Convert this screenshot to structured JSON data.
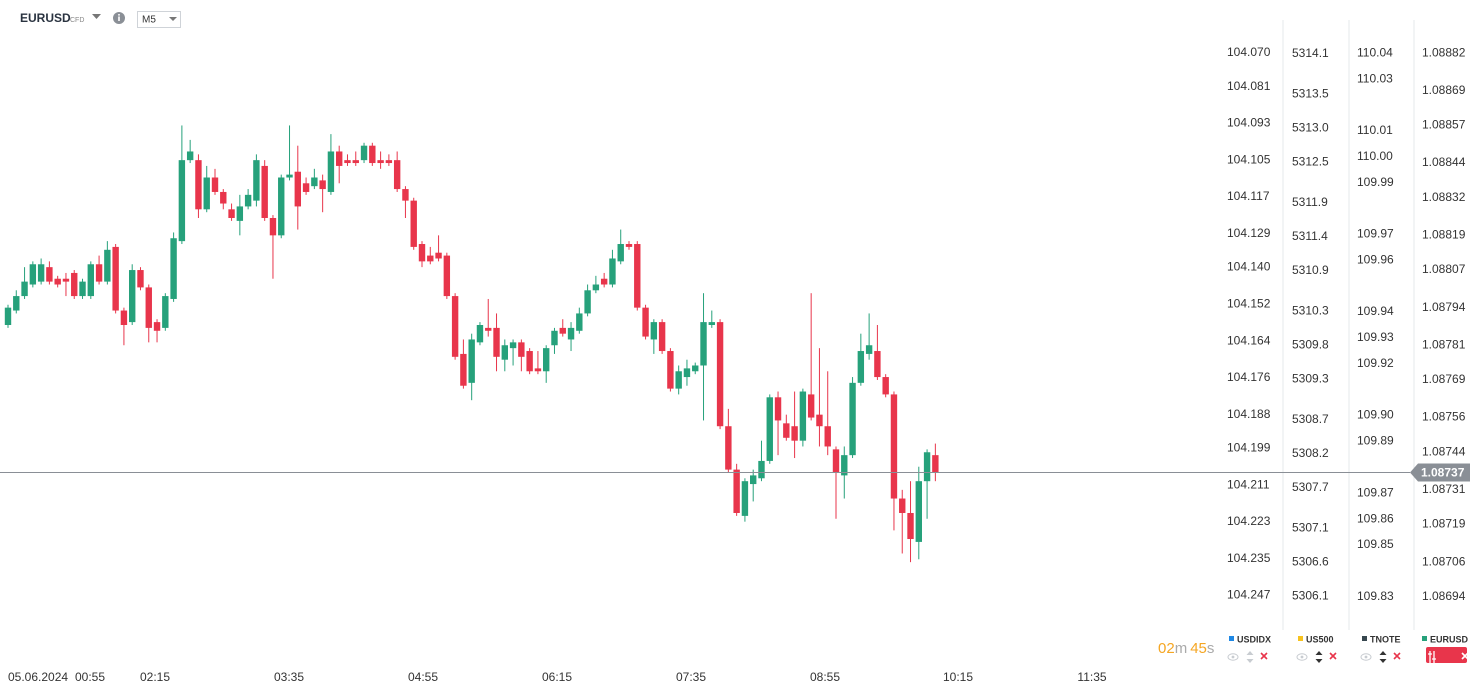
{
  "header": {
    "symbol": "EURUSD",
    "badge": "CFD",
    "timeframe": "M5"
  },
  "chart_data": {
    "type": "candlestick",
    "color_up": "#26a17b",
    "color_down": "#e8354b",
    "current_price": 1.08737,
    "x_labels": [
      "05.06.2024",
      "00:55",
      "02:15",
      "03:35",
      "04:55",
      "06:15",
      "07:35",
      "08:55",
      "10:15",
      "11:35"
    ],
    "axes": [
      {
        "name": "USDIDX",
        "color": "#1e88e5",
        "ylim": [
          104.255,
          104.0625
        ],
        "yticks": [
          {
            "value": 104.07,
            "label": "104.070"
          },
          104.081,
          104.093,
          104.105,
          104.117,
          104.129,
          {
            "value": 104.14,
            "label": "104.140"
          },
          104.152,
          104.164,
          104.176,
          104.188,
          104.199,
          104.211,
          104.223,
          104.235,
          104.247
        ]
      },
      {
        "name": "US500",
        "color": "#f7c21e",
        "ylim": [
          5305.75,
          5314.45
        ],
        "yticks": [
          5314.1,
          5313.5,
          {
            "value": 5313,
            "label": "5313.0"
          },
          5312.5,
          5311.9,
          5311.4,
          5310.9,
          5310.3,
          5309.8,
          5309.3,
          5308.7,
          5308.2,
          5307.7,
          5307.1,
          5306.6,
          5306.1
        ]
      },
      {
        "name": "TNOTE",
        "color": "#37474f",
        "ylim": [
          109.821,
          110.049
        ],
        "yticks": [
          110.04,
          110.03,
          110.01,
          {
            "value": 110,
            "label": "110.00"
          },
          109.99,
          109.97,
          109.96,
          109.94,
          109.93,
          109.92,
          {
            "value": 109.9,
            "label": "109.90"
          },
          109.89,
          109.87,
          109.86,
          109.85,
          109.83
        ]
      },
      {
        "name": "EURUSD",
        "color": "#26a17b",
        "ylim": [
          1.08686,
          1.0889
        ],
        "yticks": [
          1.08882,
          1.08869,
          1.08857,
          1.08844,
          1.08832,
          1.08819,
          1.08807,
          1.08794,
          1.08781,
          1.08769,
          1.08756,
          1.08744,
          1.08731,
          1.08719,
          1.08706,
          1.08694
        ]
      }
    ],
    "candles": [
      [
        1.08788,
        1.08795,
        1.08787,
        1.08794
      ],
      [
        1.08793,
        1.088,
        1.08792,
        1.08798
      ],
      [
        1.08798,
        1.08808,
        1.08797,
        1.08803
      ],
      [
        1.08802,
        1.0881,
        1.08801,
        1.08809
      ],
      [
        1.08803,
        1.08811,
        1.08802,
        1.08809
      ],
      [
        1.08808,
        1.0881,
        1.08802,
        1.08803
      ],
      [
        1.08804,
        1.08805,
        1.08801,
        1.08802
      ],
      [
        1.08804,
        1.08806,
        1.08798,
        1.08803
      ],
      [
        1.08806,
        1.08807,
        1.08797,
        1.08798
      ],
      [
        1.08798,
        1.08804,
        1.08797,
        1.08803
      ],
      [
        1.08798,
        1.0881,
        1.08797,
        1.08809
      ],
      [
        1.08809,
        1.08812,
        1.08802,
        1.08803
      ],
      [
        1.08803,
        1.08817,
        1.08802,
        1.08814
      ],
      [
        1.08815,
        1.08816,
        1.08792,
        1.08793
      ],
      [
        1.08793,
        1.08794,
        1.08781,
        1.08788
      ],
      [
        1.08789,
        1.08809,
        1.08788,
        1.08807
      ],
      [
        1.08807,
        1.08808,
        1.088,
        1.08801
      ],
      [
        1.08801,
        1.08802,
        1.08782,
        1.08787
      ],
      [
        1.08789,
        1.0879,
        1.08782,
        1.08786
      ],
      [
        1.08787,
        1.08799,
        1.08786,
        1.08798
      ],
      [
        1.08797,
        1.0882,
        1.08796,
        1.08818
      ],
      [
        1.08817,
        1.08857,
        1.08816,
        1.08845
      ],
      [
        1.08845,
        1.08852,
        1.08844,
        1.08848
      ],
      [
        1.08845,
        1.08847,
        1.08825,
        1.08828
      ],
      [
        1.08828,
        1.08843,
        1.08827,
        1.08839
      ],
      [
        1.08839,
        1.08842,
        1.08833,
        1.08834
      ],
      [
        1.08834,
        1.08835,
        1.08828,
        1.0883
      ],
      [
        1.08828,
        1.0883,
        1.08824,
        1.08825
      ],
      [
        1.08824,
        1.08833,
        1.08819,
        1.08829
      ],
      [
        1.08829,
        1.08835,
        1.08828,
        1.08833
      ],
      [
        1.08831,
        1.08847,
        1.08829,
        1.08845
      ],
      [
        1.08843,
        1.08845,
        1.08824,
        1.08825
      ],
      [
        1.08825,
        1.08826,
        1.08804,
        1.08819
      ],
      [
        1.08819,
        1.0884,
        1.08818,
        1.08839
      ],
      [
        1.08839,
        1.08857,
        1.08838,
        1.0884
      ],
      [
        1.08841,
        1.0885,
        1.08821,
        1.08829
      ],
      [
        1.08837,
        1.08839,
        1.08833,
        1.08834
      ],
      [
        1.08836,
        1.08842,
        1.08835,
        1.08839
      ],
      [
        1.08838,
        1.0884,
        1.08827,
        1.08835
      ],
      [
        1.08834,
        1.08854,
        1.08833,
        1.08848
      ],
      [
        1.08848,
        1.0885,
        1.08837,
        1.08843
      ],
      [
        1.08845,
        1.08847,
        1.08843,
        1.08844
      ],
      [
        1.08845,
        1.08848,
        1.08843,
        1.08844
      ],
      [
        1.08845,
        1.08851,
        1.08844,
        1.0885
      ],
      [
        1.0885,
        1.08851,
        1.08843,
        1.08844
      ],
      [
        1.08845,
        1.08848,
        1.08842,
        1.08844
      ],
      [
        1.08845,
        1.08847,
        1.08843,
        1.08844
      ],
      [
        1.08845,
        1.08848,
        1.08834,
        1.08835
      ],
      [
        1.08835,
        1.08836,
        1.08825,
        1.08831
      ],
      [
        1.08831,
        1.08832,
        1.08814,
        1.08815
      ],
      [
        1.08816,
        1.08817,
        1.08808,
        1.0881
      ],
      [
        1.08812,
        1.08815,
        1.08809,
        1.0881
      ],
      [
        1.08813,
        1.08819,
        1.0881,
        1.08811
      ],
      [
        1.08812,
        1.08813,
        1.08797,
        1.08798
      ],
      [
        1.08798,
        1.08799,
        1.08776,
        1.08777
      ],
      [
        1.08778,
        1.08783,
        1.08766,
        1.08767
      ],
      [
        1.08768,
        1.08785,
        1.08762,
        1.08783
      ],
      [
        1.08782,
        1.08789,
        1.08781,
        1.08788
      ],
      [
        1.08787,
        1.08797,
        1.08784,
        1.08786
      ],
      [
        1.08787,
        1.08792,
        1.08772,
        1.08777
      ],
      [
        1.08776,
        1.08783,
        1.08772,
        1.08781
      ],
      [
        1.0878,
        1.08783,
        1.08774,
        1.08782
      ],
      [
        1.08782,
        1.08783,
        1.08772,
        1.08777
      ],
      [
        1.08779,
        1.0878,
        1.08771,
        1.08772
      ],
      [
        1.08773,
        1.08779,
        1.08771,
        1.08772
      ],
      [
        1.08772,
        1.08781,
        1.08768,
        1.0878
      ],
      [
        1.08781,
        1.08787,
        1.08778,
        1.08786
      ],
      [
        1.08787,
        1.0879,
        1.08784,
        1.08785
      ],
      [
        1.08783,
        1.08789,
        1.08779,
        1.08787
      ],
      [
        1.08786,
        1.08794,
        1.08785,
        1.08792
      ],
      [
        1.08792,
        1.08802,
        1.08791,
        1.088
      ],
      [
        1.088,
        1.08805,
        1.08799,
        1.08802
      ],
      [
        1.08804,
        1.08806,
        1.08801,
        1.08802
      ],
      [
        1.08802,
        1.08814,
        1.08801,
        1.08811
      ],
      [
        1.0881,
        1.08821,
        1.08809,
        1.08816
      ],
      [
        1.08816,
        1.08817,
        1.08814,
        1.08815
      ],
      [
        1.08816,
        1.08817,
        1.08793,
        1.08794
      ],
      [
        1.08794,
        1.08795,
        1.08783,
        1.08784
      ],
      [
        1.08783,
        1.0879,
        1.08778,
        1.08789
      ],
      [
        1.08789,
        1.0879,
        1.08778,
        1.08779
      ],
      [
        1.08779,
        1.0878,
        1.08765,
        1.08766
      ],
      [
        1.08766,
        1.08774,
        1.08764,
        1.08772
      ],
      [
        1.0877,
        1.08776,
        1.08767,
        1.08773
      ],
      [
        1.08772,
        1.08775,
        1.08771,
        1.08774
      ],
      [
        1.08774,
        1.08799,
        1.08755,
        1.08789
      ],
      [
        1.08788,
        1.08793,
        1.08787,
        1.08789
      ],
      [
        1.08789,
        1.0879,
        1.08752,
        1.08753
      ],
      [
        1.08753,
        1.08759,
        1.08737,
        1.08738
      ],
      [
        1.08738,
        1.0874,
        1.08722,
        1.08723
      ],
      [
        1.08722,
        1.08735,
        1.0872,
        1.08734
      ],
      [
        1.08733,
        1.08738,
        1.08727,
        1.08736
      ],
      [
        1.08735,
        1.08748,
        1.08734,
        1.08741
      ],
      [
        1.08741,
        1.08764,
        1.0874,
        1.08763
      ],
      [
        1.08763,
        1.08765,
        1.08743,
        1.08755
      ],
      [
        1.08754,
        1.08757,
        1.08748,
        1.08749
      ],
      [
        1.08753,
        1.08765,
        1.08742,
        1.08748
      ],
      [
        1.08748,
        1.08766,
        1.08746,
        1.08765
      ],
      [
        1.08764,
        1.08799,
        1.08755,
        1.08756
      ],
      [
        1.08757,
        1.0878,
        1.08746,
        1.08753
      ],
      [
        1.08753,
        1.08772,
        1.08743,
        1.08746
      ],
      [
        1.08745,
        1.08746,
        1.08721,
        1.08737
      ],
      [
        1.08736,
        1.08746,
        1.08728,
        1.08743
      ],
      [
        1.08743,
        1.0877,
        1.08742,
        1.08768
      ],
      [
        1.08768,
        1.08785,
        1.08767,
        1.08779
      ],
      [
        1.08778,
        1.08792,
        1.08776,
        1.08781
      ],
      [
        1.08779,
        1.08788,
        1.08769,
        1.0877
      ],
      [
        1.0877,
        1.08771,
        1.08763,
        1.08764
      ],
      [
        1.08764,
        1.08765,
        1.08717,
        1.08728
      ],
      [
        1.08728,
        1.08731,
        1.08709,
        1.08723
      ],
      [
        1.08723,
        1.08734,
        1.08706,
        1.08714
      ],
      [
        1.08713,
        1.08739,
        1.08707,
        1.08734
      ],
      [
        1.08734,
        1.08745,
        1.08721,
        1.08744
      ],
      [
        1.08743,
        1.08747,
        1.08734,
        1.08737
      ]
    ]
  },
  "timer": {
    "minutes": "02",
    "m": "m",
    "seconds": "45",
    "s": "s"
  }
}
